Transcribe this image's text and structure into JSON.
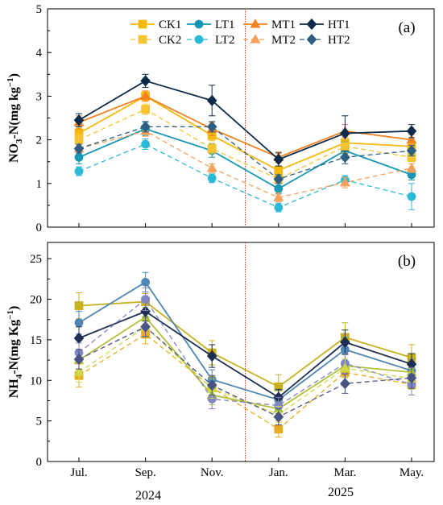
{
  "figure": {
    "x_categories": [
      "Jul.",
      "Sep.",
      "Nov.",
      "Jan.",
      "Mar.",
      "May."
    ],
    "year_labels": [
      "2024",
      "2025"
    ],
    "divider_color": "#c0392b"
  },
  "chart_data": [
    {
      "type": "line",
      "panel_label": "(a)",
      "ylabel_main": "NO",
      "ylabel_sub": "3",
      "ylabel_rest": "-N(mg kg",
      "ylabel_sup": "−1",
      "ylabel_end": ")",
      "ylim": [
        0,
        5
      ],
      "yticks": [
        0,
        1,
        2,
        3,
        4,
        5
      ],
      "legend_position": "top-center",
      "grid": false,
      "categories": [
        "Jul.",
        "Sep.",
        "Nov.",
        "Jan.",
        "Mar.",
        "May."
      ],
      "series": [
        {
          "name": "CK1",
          "color": "#f5b90d",
          "marker": "square",
          "dashed": false,
          "values": [
            2.15,
            3.0,
            2.1,
            1.3,
            1.93,
            1.85
          ],
          "err": [
            0.12,
            0.1,
            0.12,
            0.1,
            0.15,
            0.1
          ]
        },
        {
          "name": "LT1",
          "color": "#1797b5",
          "marker": "circle",
          "dashed": false,
          "values": [
            1.6,
            2.25,
            1.75,
            0.88,
            1.75,
            1.2
          ],
          "err": [
            0.15,
            0.15,
            0.15,
            0.12,
            0.2,
            0.12
          ]
        },
        {
          "name": "MT1",
          "color": "#f58220",
          "marker": "triangle",
          "dashed": false,
          "values": [
            2.4,
            3.0,
            2.25,
            1.6,
            2.2,
            2.0
          ],
          "err": [
            0.15,
            0.12,
            0.15,
            0.12,
            0.15,
            0.12
          ]
        },
        {
          "name": "HT1",
          "color": "#0d2b4a",
          "marker": "diamond",
          "dashed": false,
          "values": [
            2.45,
            3.35,
            2.9,
            1.55,
            2.15,
            2.2
          ],
          "err": [
            0.15,
            0.15,
            0.35,
            0.15,
            0.4,
            0.15
          ]
        },
        {
          "name": "CK2",
          "color": "#f5c430",
          "marker": "square",
          "dashed": true,
          "values": [
            2.0,
            2.7,
            1.8,
            1.1,
            1.85,
            1.6
          ],
          "err": [
            0.12,
            0.12,
            0.12,
            0.1,
            0.15,
            0.1
          ]
        },
        {
          "name": "LT2",
          "color": "#2bbad6",
          "marker": "circle",
          "dashed": true,
          "values": [
            1.28,
            1.9,
            1.12,
            0.45,
            1.08,
            0.7
          ],
          "err": [
            0.1,
            0.12,
            0.1,
            0.1,
            0.1,
            0.3
          ]
        },
        {
          "name": "MT2",
          "color": "#f5a05a",
          "marker": "triangle",
          "dashed": true,
          "values": [
            1.8,
            2.2,
            1.35,
            0.68,
            1.02,
            1.35
          ],
          "err": [
            0.1,
            0.12,
            0.1,
            0.1,
            0.12,
            0.1
          ]
        },
        {
          "name": "HT2",
          "color": "#2f5f80",
          "marker": "diamond",
          "dashed": true,
          "values": [
            1.8,
            2.3,
            2.3,
            1.1,
            1.6,
            1.75
          ],
          "err": [
            0.1,
            0.12,
            0.12,
            0.1,
            0.15,
            0.12
          ]
        }
      ]
    },
    {
      "type": "line",
      "panel_label": "(b)",
      "ylabel_main": "NH",
      "ylabel_sub": "4",
      "ylabel_rest": "-N(mg Kg",
      "ylabel_sup": "−1",
      "ylabel_end": ")",
      "ylim": [
        0,
        27
      ],
      "yticks": [
        0,
        5,
        10,
        15,
        20,
        25
      ],
      "grid": false,
      "categories": [
        "Jul.",
        "Sep.",
        "Nov.",
        "Jan.",
        "Mar.",
        "May."
      ],
      "series": [
        {
          "name": "CK1",
          "color": "#c8b11e",
          "marker": "square",
          "dashed": false,
          "values": [
            19.2,
            19.7,
            13.4,
            9.2,
            15.3,
            12.8
          ],
          "err": [
            1.6,
            1.0,
            1.5,
            1.5,
            1.8,
            1.6
          ]
        },
        {
          "name": "LT1",
          "color": "#4e86b5",
          "marker": "circle",
          "dashed": false,
          "values": [
            17.1,
            22.1,
            10.1,
            7.6,
            13.8,
            11.2
          ],
          "err": [
            1.4,
            1.2,
            1.2,
            1.2,
            1.5,
            1.4
          ]
        },
        {
          "name": "MT1",
          "color": "#aec23a",
          "marker": "triangle",
          "dashed": false,
          "values": [
            12.5,
            17.8,
            8.2,
            6.5,
            11.8,
            11.0
          ],
          "err": [
            1.2,
            1.2,
            1.2,
            1.0,
            1.4,
            1.2
          ]
        },
        {
          "name": "HT1",
          "color": "#1e2d52",
          "marker": "diamond",
          "dashed": false,
          "values": [
            15.2,
            18.5,
            13.0,
            7.9,
            14.7,
            12.0
          ],
          "err": [
            1.4,
            1.2,
            1.4,
            1.0,
            1.5,
            1.3
          ]
        },
        {
          "name": "CK2",
          "color": "#e8ad1e",
          "marker": "square",
          "dashed": true,
          "values": [
            10.6,
            15.7,
            9.1,
            4.0,
            11.0,
            9.5
          ],
          "err": [
            1.4,
            1.2,
            1.4,
            1.0,
            1.2,
            1.3
          ]
        },
        {
          "name": "LT2",
          "color": "#7f86c2",
          "marker": "circle",
          "dashed": true,
          "values": [
            13.4,
            20.0,
            7.7,
            6.9,
            12.1,
            9.5
          ],
          "err": [
            1.2,
            1.4,
            1.2,
            1.0,
            1.2,
            1.3
          ]
        },
        {
          "name": "MT2",
          "color": "#cfd64a",
          "marker": "triangle",
          "dashed": true,
          "values": [
            11.0,
            16.6,
            9.0,
            5.8,
            11.5,
            10.2
          ],
          "err": [
            1.2,
            1.2,
            1.2,
            1.0,
            1.2,
            1.3
          ]
        },
        {
          "name": "HT2",
          "color": "#4a5482",
          "marker": "diamond",
          "dashed": true,
          "values": [
            12.6,
            16.6,
            9.4,
            5.5,
            9.6,
            10.3
          ],
          "err": [
            1.2,
            1.2,
            1.2,
            1.0,
            1.2,
            1.3
          ]
        }
      ]
    }
  ]
}
